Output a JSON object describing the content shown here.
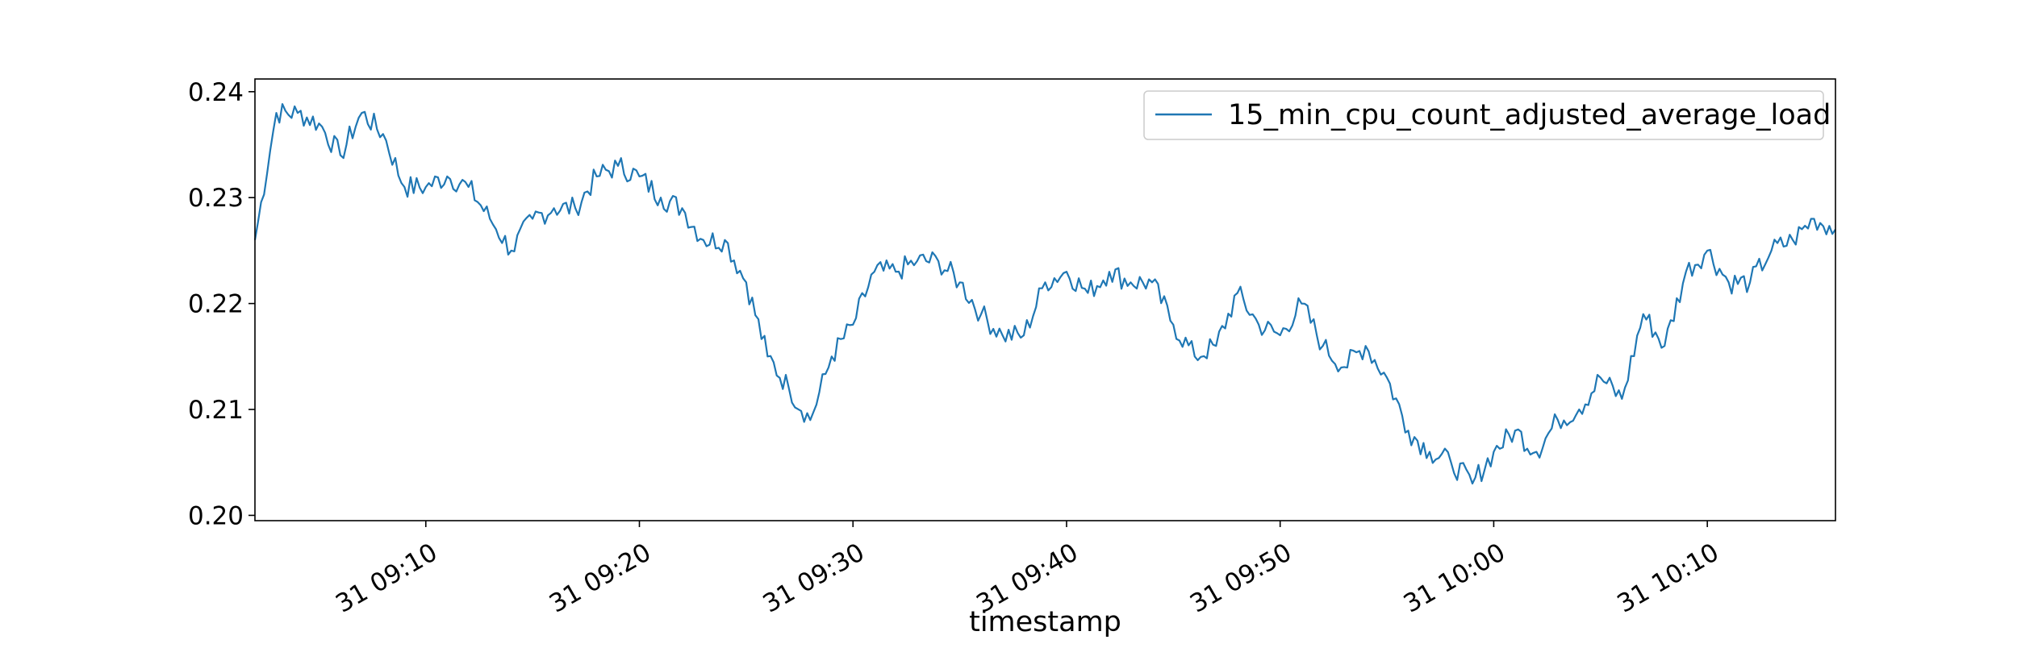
{
  "chart_data": {
    "type": "line",
    "title": "",
    "xlabel": "timestamp",
    "ylabel": "",
    "ylim": [
      0.1995,
      0.2412
    ],
    "xlim": [
      "09:02",
      "10:16"
    ],
    "x_ticks": [
      {
        "value": "09:10",
        "label": "31 09:10"
      },
      {
        "value": "09:20",
        "label": "31 09:20"
      },
      {
        "value": "09:30",
        "label": "31 09:30"
      },
      {
        "value": "09:40",
        "label": "31 09:40"
      },
      {
        "value": "09:50",
        "label": "31 09:50"
      },
      {
        "value": "10:00",
        "label": "31 10:00"
      },
      {
        "value": "10:10",
        "label": "31 10:10"
      }
    ],
    "y_ticks": [
      {
        "value": 0.2,
        "label": "0.20"
      },
      {
        "value": 0.21,
        "label": "0.21"
      },
      {
        "value": 0.22,
        "label": "0.22"
      },
      {
        "value": 0.23,
        "label": "0.23"
      },
      {
        "value": 0.24,
        "label": "0.24"
      }
    ],
    "grid": false,
    "legend_position": "top-right",
    "series": [
      {
        "name": "15_min_cpu_count_adjusted_average_load",
        "color": "#1f77b4",
        "x": [
          "09:02",
          "09:03",
          "09:04",
          "09:05",
          "09:06",
          "09:07",
          "09:08",
          "09:09",
          "09:10",
          "09:11",
          "09:12",
          "09:13",
          "09:14",
          "09:15",
          "09:16",
          "09:17",
          "09:18",
          "09:19",
          "09:20",
          "09:21",
          "09:22",
          "09:23",
          "09:24",
          "09:25",
          "09:26",
          "09:27",
          "09:28",
          "09:29",
          "09:30",
          "09:31",
          "09:32",
          "09:33",
          "09:34",
          "09:35",
          "09:36",
          "09:37",
          "09:38",
          "09:39",
          "09:40",
          "09:41",
          "09:42",
          "09:43",
          "09:44",
          "09:45",
          "09:46",
          "09:47",
          "09:48",
          "09:49",
          "09:50",
          "09:51",
          "09:52",
          "09:53",
          "09:54",
          "09:55",
          "09:56",
          "09:57",
          "09:58",
          "09:59",
          "10:00",
          "10:01",
          "10:02",
          "10:03",
          "10:04",
          "10:05",
          "10:06",
          "10:07",
          "10:08",
          "10:09",
          "10:10",
          "10:11",
          "10:12",
          "10:13",
          "10:14",
          "10:15",
          "10:16"
        ],
        "values": [
          0.226,
          0.238,
          0.238,
          0.237,
          0.234,
          0.238,
          0.236,
          0.231,
          0.231,
          0.232,
          0.231,
          0.228,
          0.225,
          0.228,
          0.229,
          0.229,
          0.232,
          0.233,
          0.232,
          0.23,
          0.229,
          0.226,
          0.226,
          0.222,
          0.215,
          0.212,
          0.209,
          0.215,
          0.218,
          0.223,
          0.223,
          0.224,
          0.224,
          0.222,
          0.219,
          0.217,
          0.217,
          0.222,
          0.223,
          0.221,
          0.223,
          0.222,
          0.222,
          0.218,
          0.215,
          0.216,
          0.221,
          0.218,
          0.217,
          0.22,
          0.216,
          0.214,
          0.216,
          0.213,
          0.208,
          0.206,
          0.205,
          0.203,
          0.206,
          0.208,
          0.206,
          0.209,
          0.21,
          0.213,
          0.211,
          0.219,
          0.216,
          0.223,
          0.225,
          0.222,
          0.222,
          0.225,
          0.226,
          0.228,
          0.227
        ]
      }
    ]
  }
}
